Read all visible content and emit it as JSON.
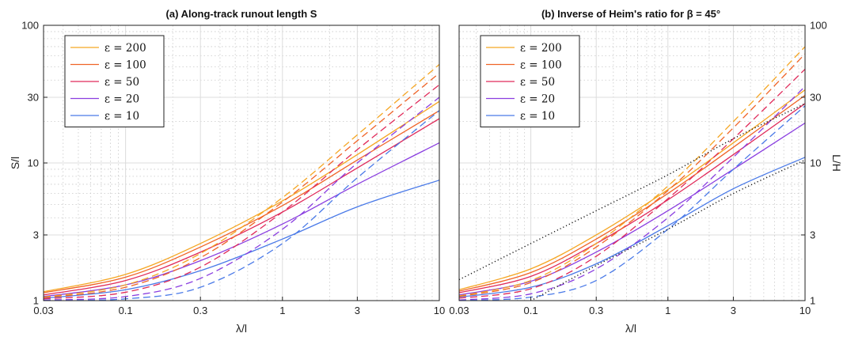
{
  "colors": {
    "e200": "#f5a623",
    "e100": "#f06427",
    "e50": "#e02a5a",
    "e20": "#8a3ee0",
    "e10": "#4a7ae8",
    "dotted": "#111111"
  },
  "chart_data": [
    {
      "type": "line",
      "title": "(a) Along-track runout length S",
      "xlabel": "λ/l",
      "ylabel": "S/l",
      "xscale": "log",
      "yscale": "log",
      "xlim": [
        0.03,
        10
      ],
      "ylim": [
        1,
        100
      ],
      "grid": true,
      "legend_position": "top-left",
      "x_ticks": [
        0.03,
        0.1,
        0.3,
        1,
        3,
        10
      ],
      "x_tick_labels": [
        "0.03",
        "0.1",
        "0.3",
        "1",
        "3",
        "10"
      ],
      "y_ticks": [
        1,
        3,
        10,
        30,
        100
      ],
      "y_tick_labels": [
        "1",
        "3",
        "10",
        "30",
        "100"
      ],
      "x": [
        0.03,
        0.1,
        0.3,
        1,
        3,
        10
      ],
      "series": [
        {
          "name": "ε = 200",
          "color_key": "e200",
          "style": "solid",
          "values": [
            1.16,
            1.55,
            2.6,
            5.3,
            11.5,
            28
          ]
        },
        {
          "name": "ε = 100",
          "color_key": "e100",
          "style": "solid",
          "values": [
            1.14,
            1.48,
            2.45,
            4.9,
            10.5,
            24
          ]
        },
        {
          "name": "ε = 50",
          "color_key": "e50",
          "style": "solid",
          "values": [
            1.1,
            1.4,
            2.25,
            4.4,
            9.2,
            21
          ]
        },
        {
          "name": "ε = 20",
          "color_key": "e20",
          "style": "solid",
          "values": [
            1.07,
            1.3,
            1.95,
            3.6,
            7.0,
            14
          ]
        },
        {
          "name": "ε = 10",
          "color_key": "e10",
          "style": "solid",
          "values": [
            1.04,
            1.2,
            1.65,
            2.8,
            4.8,
            7.5
          ]
        },
        {
          "color_key": "e200",
          "style": "dashed",
          "values": [
            1.06,
            1.3,
            2.2,
            5.6,
            16,
            52
          ]
        },
        {
          "color_key": "e100",
          "style": "dashed",
          "values": [
            1.05,
            1.25,
            2.05,
            5.2,
            14.5,
            45
          ]
        },
        {
          "color_key": "e50",
          "style": "dashed",
          "values": [
            1.03,
            1.15,
            1.75,
            4.4,
            12.5,
            37
          ]
        },
        {
          "color_key": "e20",
          "style": "dashed",
          "values": [
            1.01,
            1.07,
            1.45,
            3.3,
            10,
            30
          ]
        },
        {
          "color_key": "e10",
          "style": "dashed",
          "values": [
            1.0,
            1.03,
            1.25,
            2.6,
            7.8,
            24
          ]
        }
      ]
    },
    {
      "type": "line",
      "title": "(b) Inverse of Heim's ratio for β = 45°",
      "xlabel": "λ/l",
      "ylabel": "L/H",
      "xscale": "log",
      "yscale": "log",
      "xlim": [
        0.03,
        10
      ],
      "ylim": [
        1,
        100
      ],
      "grid": true,
      "legend_position": "top-left",
      "x_ticks": [
        0.03,
        0.1,
        0.3,
        1,
        3,
        10
      ],
      "x_tick_labels": [
        "0.03",
        "0.1",
        "0.3",
        "1",
        "3",
        "10"
      ],
      "y_ticks": [
        1,
        3,
        10,
        30,
        100
      ],
      "y_tick_labels": [
        "1",
        "3",
        "10",
        "30",
        "100"
      ],
      "x": [
        0.03,
        0.1,
        0.3,
        1,
        3,
        10
      ],
      "series": [
        {
          "name": "ε = 200",
          "color_key": "e200",
          "style": "solid",
          "values": [
            1.2,
            1.7,
            3.0,
            6.4,
            14,
            34
          ]
        },
        {
          "name": "ε = 100",
          "color_key": "e100",
          "style": "solid",
          "values": [
            1.17,
            1.6,
            2.8,
            6.0,
            13,
            31
          ]
        },
        {
          "name": "ε = 50",
          "color_key": "e50",
          "style": "solid",
          "values": [
            1.14,
            1.5,
            2.6,
            5.4,
            11.5,
            27
          ]
        },
        {
          "name": "ε = 20",
          "color_key": "e20",
          "style": "solid",
          "values": [
            1.1,
            1.38,
            2.25,
            4.5,
            9,
            19.5
          ]
        },
        {
          "name": "ε = 10",
          "color_key": "e10",
          "style": "solid",
          "values": [
            1.06,
            1.25,
            1.85,
            3.5,
            6.5,
            11
          ]
        },
        {
          "color_key": "e200",
          "style": "dashed",
          "values": [
            1.08,
            1.4,
            2.6,
            6.8,
            20,
            70
          ]
        },
        {
          "color_key": "e100",
          "style": "dashed",
          "values": [
            1.07,
            1.35,
            2.45,
            6.3,
            18,
            62
          ]
        },
        {
          "color_key": "e50",
          "style": "dashed",
          "values": [
            1.04,
            1.22,
            2.1,
            5.5,
            15,
            48
          ]
        },
        {
          "color_key": "e20",
          "style": "dashed",
          "values": [
            1.01,
            1.12,
            1.7,
            4.0,
            11,
            36
          ]
        },
        {
          "color_key": "e10",
          "style": "dashed",
          "values": [
            1.0,
            1.06,
            1.4,
            3.3,
            9,
            26
          ]
        },
        {
          "color_key": "dotted",
          "style": "dotted",
          "values": [
            1.42,
            2.6,
            4.5,
            8.2,
            15,
            27
          ]
        },
        {
          "color_key": "dotted",
          "style": "dotted",
          "values": [
            0.55,
            1.0,
            1.8,
            3.3,
            6,
            10.5
          ]
        }
      ]
    }
  ]
}
